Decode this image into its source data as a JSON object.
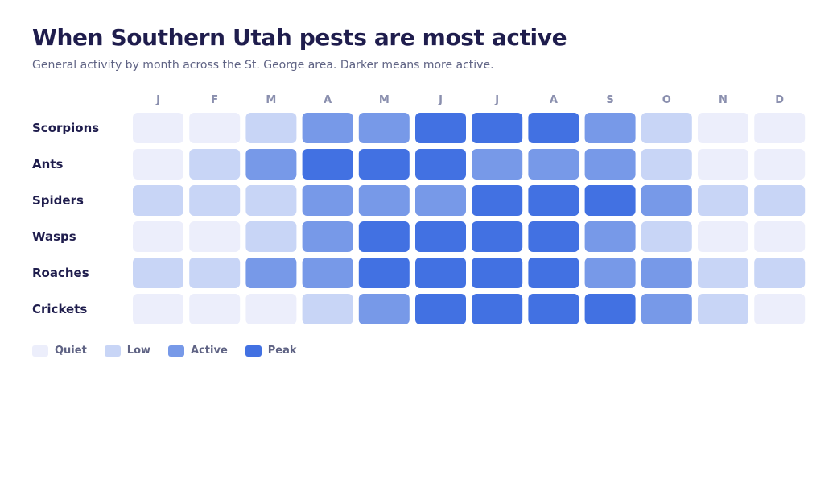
{
  "header": {
    "title": "When Southern Utah pests are most active",
    "subtitle": "General activity by month across the St. George area. Darker means more active."
  },
  "chart_data": {
    "type": "heatmap",
    "title": "When Southern Utah pests are most active",
    "subtitle": "General activity by month across the St. George area. Darker means more active.",
    "x": [
      "J",
      "F",
      "M",
      "A",
      "M",
      "J",
      "J",
      "A",
      "S",
      "O",
      "N",
      "D"
    ],
    "y": [
      "Scorpions",
      "Ants",
      "Spiders",
      "Wasps",
      "Roaches",
      "Crickets"
    ],
    "scale": [
      "Quiet",
      "Low",
      "Active",
      "Peak"
    ],
    "values": [
      [
        0,
        0,
        1,
        2,
        2,
        3,
        3,
        3,
        2,
        1,
        0,
        0
      ],
      [
        0,
        1,
        2,
        3,
        3,
        3,
        2,
        2,
        2,
        1,
        0,
        0
      ],
      [
        1,
        1,
        1,
        2,
        2,
        2,
        3,
        3,
        3,
        2,
        1,
        1
      ],
      [
        0,
        0,
        1,
        2,
        3,
        3,
        3,
        3,
        2,
        1,
        0,
        0
      ],
      [
        1,
        1,
        2,
        2,
        3,
        3,
        3,
        3,
        2,
        2,
        1,
        1
      ],
      [
        0,
        0,
        0,
        1,
        2,
        3,
        3,
        3,
        3,
        2,
        1,
        0
      ]
    ],
    "colors": [
      "#eceefb",
      "#c8d5f6",
      "#7799e8",
      "#4271e2"
    ],
    "legend_position": "bottom-left"
  }
}
